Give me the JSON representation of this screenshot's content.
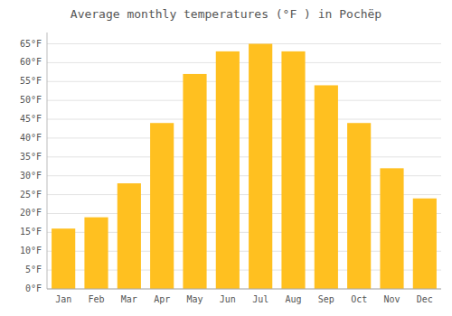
{
  "chart_data": {
    "type": "bar",
    "title": "Average monthly temperatures (°F ) in Pochëp",
    "categories": [
      "Jan",
      "Feb",
      "Mar",
      "Apr",
      "May",
      "Jun",
      "Jul",
      "Aug",
      "Sep",
      "Oct",
      "Nov",
      "Dec"
    ],
    "values": [
      16,
      19,
      28,
      44,
      57,
      63,
      65,
      63,
      54,
      44,
      32,
      24
    ],
    "color": "#FFC020",
    "ylim": [
      0,
      68
    ],
    "yticks": [
      {
        "value": 0,
        "label": "0°F"
      },
      {
        "value": 5,
        "label": "5°F"
      },
      {
        "value": 10,
        "label": "10°F"
      },
      {
        "value": 15,
        "label": "15°F"
      },
      {
        "value": 20,
        "label": "20°F"
      },
      {
        "value": 25,
        "label": "25°F"
      },
      {
        "value": 30,
        "label": "30°F"
      },
      {
        "value": 35,
        "label": "35°F"
      },
      {
        "value": 40,
        "label": "40°F"
      },
      {
        "value": 45,
        "label": "45°F"
      },
      {
        "value": 50,
        "label": "50°F"
      },
      {
        "value": 55,
        "label": "55°F"
      },
      {
        "value": 60,
        "label": "60°F"
      },
      {
        "value": 65,
        "label": "65°F"
      }
    ],
    "grid": true
  }
}
